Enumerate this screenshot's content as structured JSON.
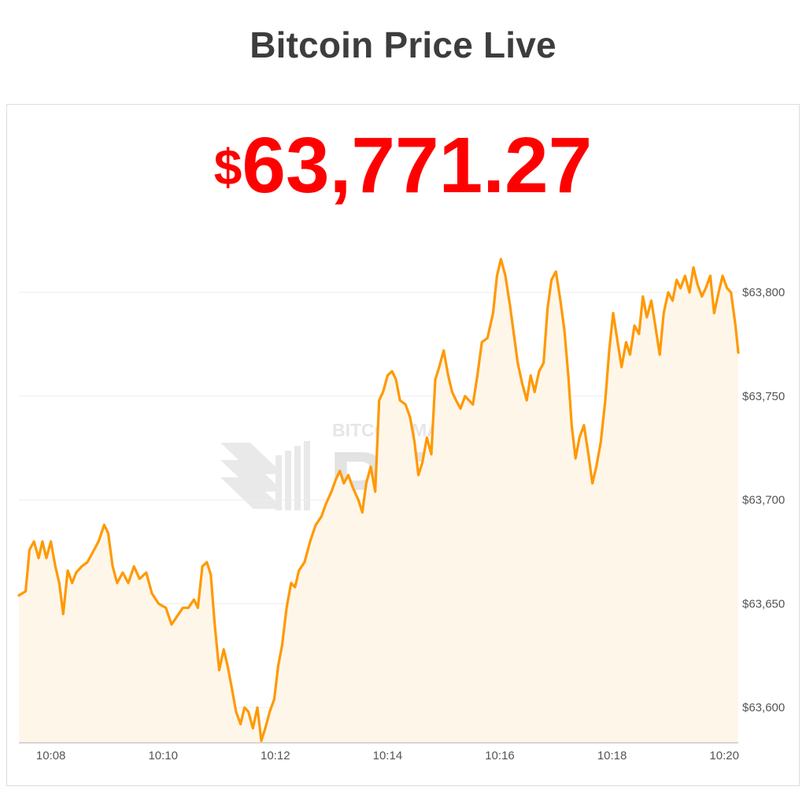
{
  "header": {
    "title": "Bitcoin Price Live"
  },
  "price": {
    "currency_symbol": "$",
    "amount": "63,771.27",
    "color": "#ff0000"
  },
  "watermark": {
    "top_text": "BITCOIN MAGAZINE",
    "main_text": "PRO"
  },
  "chart_data": {
    "type": "area",
    "title": "",
    "xlabel": "",
    "ylabel": "",
    "line_color": "#ff9900",
    "fill_color": "#fff6ea",
    "grid": true,
    "y_axis_position": "right",
    "ylim": [
      63583,
      63827
    ],
    "xlim_minutes": [
      10.125,
      20.25
    ],
    "y_ticks": [
      {
        "value": 63600,
        "label": "$63,600"
      },
      {
        "value": 63650,
        "label": "$63,650"
      },
      {
        "value": 63700,
        "label": "$63,700"
      },
      {
        "value": 63750,
        "label": "$63,750"
      },
      {
        "value": 63800,
        "label": "$63,800"
      }
    ],
    "x_ticks": [
      {
        "value": 10.133,
        "label": "10:08"
      },
      {
        "value": 10.167,
        "label": "10:10"
      },
      {
        "value": 10.2,
        "label": "10:12"
      },
      {
        "value": 10.233,
        "label": "10:14"
      },
      {
        "value": 10.267,
        "label": "10:16"
      },
      {
        "value": 10.3,
        "label": "10:18"
      },
      {
        "value": 10.333,
        "label": "10:20"
      }
    ],
    "series": [
      {
        "x_unit": "minutes after 10:00",
        "points": [
          [
            7.43,
            63654
          ],
          [
            7.55,
            63656
          ],
          [
            7.62,
            63676
          ],
          [
            7.7,
            63680
          ],
          [
            7.78,
            63672
          ],
          [
            7.85,
            63680
          ],
          [
            7.92,
            63672
          ],
          [
            8.0,
            63680
          ],
          [
            8.08,
            63668
          ],
          [
            8.15,
            63660
          ],
          [
            8.22,
            63645
          ],
          [
            8.3,
            63666
          ],
          [
            8.38,
            63660
          ],
          [
            8.45,
            63665
          ],
          [
            8.55,
            63668
          ],
          [
            8.65,
            63670
          ],
          [
            8.75,
            63675
          ],
          [
            8.85,
            63680
          ],
          [
            8.95,
            63688
          ],
          [
            9.02,
            63684
          ],
          [
            9.1,
            63668
          ],
          [
            9.18,
            63660
          ],
          [
            9.28,
            63665
          ],
          [
            9.38,
            63660
          ],
          [
            9.48,
            63668
          ],
          [
            9.58,
            63662
          ],
          [
            9.7,
            63665
          ],
          [
            9.8,
            63655
          ],
          [
            9.92,
            63650
          ],
          [
            10.05,
            63648
          ],
          [
            10.15,
            63640
          ],
          [
            10.25,
            63644
          ],
          [
            10.35,
            63648
          ],
          [
            10.45,
            63648
          ],
          [
            10.55,
            63652
          ],
          [
            10.62,
            63648
          ],
          [
            10.7,
            63668
          ],
          [
            10.78,
            63670
          ],
          [
            10.85,
            63664
          ],
          [
            10.92,
            63640
          ],
          [
            11.0,
            63618
          ],
          [
            11.08,
            63628
          ],
          [
            11.15,
            63620
          ],
          [
            11.22,
            63610
          ],
          [
            11.3,
            63598
          ],
          [
            11.38,
            63592
          ],
          [
            11.45,
            63600
          ],
          [
            11.52,
            63598
          ],
          [
            11.6,
            63590
          ],
          [
            11.68,
            63600
          ],
          [
            11.75,
            63584
          ],
          [
            11.82,
            63590
          ],
          [
            11.9,
            63598
          ],
          [
            11.98,
            63604
          ],
          [
            12.05,
            63620
          ],
          [
            12.12,
            63630
          ],
          [
            12.2,
            63648
          ],
          [
            12.28,
            63660
          ],
          [
            12.35,
            63658
          ],
          [
            12.42,
            63666
          ],
          [
            12.52,
            63670
          ],
          [
            12.62,
            63680
          ],
          [
            12.72,
            63688
          ],
          [
            12.82,
            63692
          ],
          [
            12.9,
            63698
          ],
          [
            13.0,
            63704
          ],
          [
            13.08,
            63710
          ],
          [
            13.15,
            63714
          ],
          [
            13.22,
            63708
          ],
          [
            13.3,
            63712
          ],
          [
            13.38,
            63706
          ],
          [
            13.48,
            63700
          ],
          [
            13.55,
            63694
          ],
          [
            13.62,
            63708
          ],
          [
            13.7,
            63716
          ],
          [
            13.78,
            63704
          ],
          [
            13.85,
            63748
          ],
          [
            13.92,
            63752
          ],
          [
            14.0,
            63760
          ],
          [
            14.08,
            63762
          ],
          [
            14.15,
            63758
          ],
          [
            14.22,
            63748
          ],
          [
            14.32,
            63746
          ],
          [
            14.4,
            63740
          ],
          [
            14.48,
            63728
          ],
          [
            14.55,
            63712
          ],
          [
            14.62,
            63718
          ],
          [
            14.7,
            63730
          ],
          [
            14.78,
            63722
          ],
          [
            14.85,
            63758
          ],
          [
            14.92,
            63764
          ],
          [
            15.0,
            63772
          ],
          [
            15.08,
            63760
          ],
          [
            15.15,
            63752
          ],
          [
            15.22,
            63748
          ],
          [
            15.3,
            63744
          ],
          [
            15.38,
            63750
          ],
          [
            15.45,
            63748
          ],
          [
            15.52,
            63746
          ],
          [
            15.6,
            63760
          ],
          [
            15.68,
            63776
          ],
          [
            15.78,
            63778
          ],
          [
            15.88,
            63790
          ],
          [
            15.95,
            63808
          ],
          [
            16.02,
            63816
          ],
          [
            16.1,
            63808
          ],
          [
            16.18,
            63794
          ],
          [
            16.25,
            63780
          ],
          [
            16.32,
            63766
          ],
          [
            16.4,
            63756
          ],
          [
            16.48,
            63748
          ],
          [
            16.55,
            63760
          ],
          [
            16.62,
            63752
          ],
          [
            16.7,
            63762
          ],
          [
            16.78,
            63766
          ],
          [
            16.85,
            63792
          ],
          [
            16.92,
            63806
          ],
          [
            17.0,
            63810
          ],
          [
            17.08,
            63796
          ],
          [
            17.15,
            63782
          ],
          [
            17.22,
            63760
          ],
          [
            17.28,
            63736
          ],
          [
            17.35,
            63720
          ],
          [
            17.42,
            63730
          ],
          [
            17.5,
            63736
          ],
          [
            17.58,
            63722
          ],
          [
            17.65,
            63708
          ],
          [
            17.72,
            63716
          ],
          [
            17.8,
            63728
          ],
          [
            17.88,
            63748
          ],
          [
            17.95,
            63772
          ],
          [
            18.02,
            63790
          ],
          [
            18.1,
            63776
          ],
          [
            18.17,
            63764
          ],
          [
            18.25,
            63776
          ],
          [
            18.32,
            63770
          ],
          [
            18.4,
            63784
          ],
          [
            18.48,
            63780
          ],
          [
            18.55,
            63798
          ],
          [
            18.62,
            63788
          ],
          [
            18.7,
            63796
          ],
          [
            18.77,
            63784
          ],
          [
            18.85,
            63770
          ],
          [
            18.92,
            63790
          ],
          [
            19.0,
            63800
          ],
          [
            19.08,
            63796
          ],
          [
            19.15,
            63806
          ],
          [
            19.22,
            63802
          ],
          [
            19.3,
            63808
          ],
          [
            19.38,
            63800
          ],
          [
            19.45,
            63812
          ],
          [
            19.52,
            63804
          ],
          [
            19.6,
            63798
          ],
          [
            19.67,
            63802
          ],
          [
            19.75,
            63808
          ],
          [
            19.82,
            63790
          ],
          [
            19.9,
            63800
          ],
          [
            19.97,
            63808
          ],
          [
            20.05,
            63802
          ],
          [
            20.12,
            63800
          ],
          [
            20.2,
            63784
          ],
          [
            20.25,
            63771
          ]
        ]
      }
    ]
  }
}
